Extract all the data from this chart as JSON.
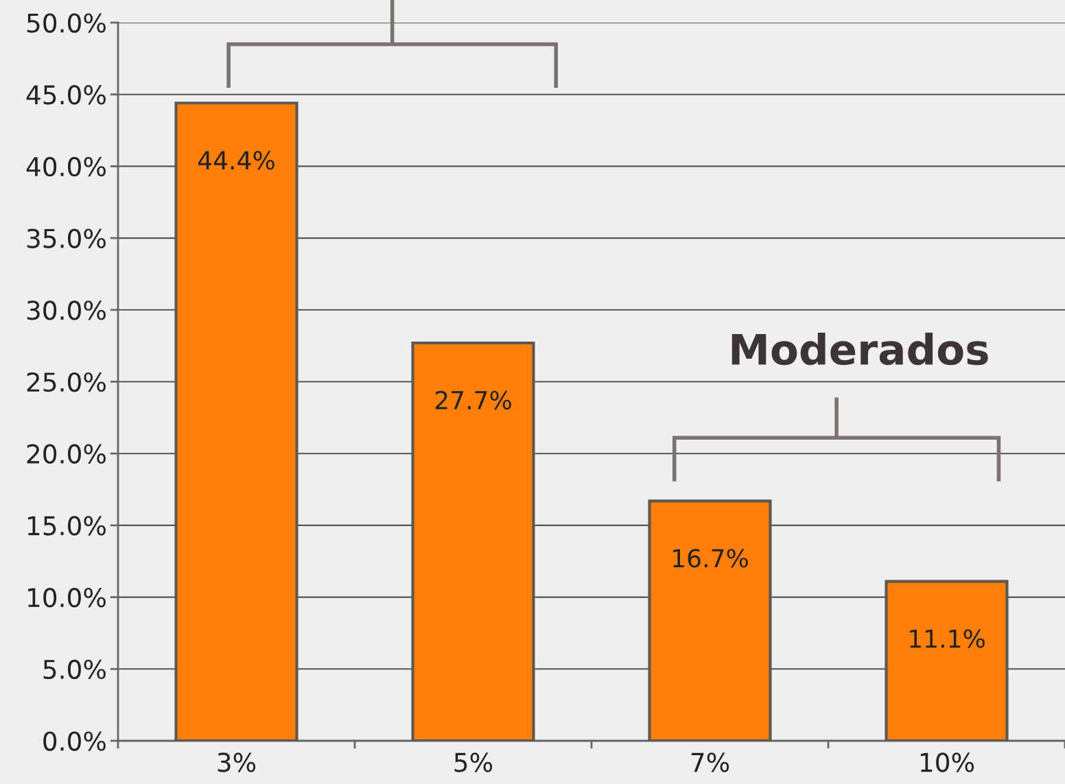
{
  "chart_data": {
    "type": "bar",
    "categories": [
      "3%",
      "5%",
      "7%",
      "10%"
    ],
    "values": [
      44.4,
      27.7,
      16.7,
      11.1
    ],
    "color": "#ff7f0a",
    "value_labels": [
      "44.4%",
      "27.7%",
      "16.7%",
      "11.1%"
    ],
    "ylim": [
      0,
      50
    ],
    "yticks": [
      {
        "value": 0,
        "label": "0.0%"
      },
      {
        "value": 5,
        "label": "5.0%"
      },
      {
        "value": 10,
        "label": "10.0%"
      },
      {
        "value": 15,
        "label": "15.0%"
      },
      {
        "value": 20,
        "label": "20.0%"
      },
      {
        "value": 25,
        "label": "25.0%"
      },
      {
        "value": 30,
        "label": "30.0%"
      },
      {
        "value": 35,
        "label": "35.0%"
      },
      {
        "value": 40,
        "label": "40.0%"
      },
      {
        "value": 45,
        "label": "45.0%"
      },
      {
        "value": 50,
        "label": "50.0%"
      }
    ],
    "grid": "y",
    "annotations": [
      "Moderados"
    ]
  }
}
